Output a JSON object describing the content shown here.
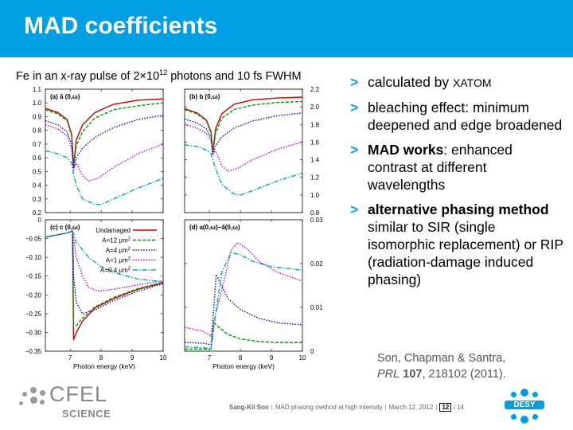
{
  "slide": {
    "title": "MAD coefficients",
    "figure_title_pre": "Fe in an x-ray pulse of 2×10",
    "figure_title_sup": "12",
    "figure_title_post": " photons and 10 fs FWHM"
  },
  "bullets": {
    "b1_pre": "calculated by ",
    "b1_sc": "XATOM",
    "b2": "bleaching effect: minimum deepened and edge broadened",
    "b3_bold": "MAD works",
    "b3_rest": ": enhanced contrast at different wavelengths",
    "b4_bold": "alternative phasing method",
    "b4_rest": " similar to SIR (single isomorphic replacement) or RIP (radiation-damage induced phasing)",
    "marker": ">"
  },
  "reference": {
    "authors": "Son, Chapman & Santra,",
    "journal": "PRL",
    "volume": "107",
    "rest": ", 218102 (2011)."
  },
  "footer": {
    "author": "Sang-Kil Son",
    "talk": "MAD phasing method at high intensity",
    "date": "March 12, 2012",
    "page": "12",
    "total": "/ 14"
  },
  "logos": {
    "cfel": "CFEL",
    "cfel_sub": "SCIENCE",
    "desy": "DESY"
  },
  "colors": {
    "title_bar": "#009fe3",
    "accent": "#009fe3"
  },
  "legend": {
    "title": "Undamaged",
    "entries": [
      "A=12 μm",
      "A=4 μm",
      "A=1 μm",
      "A=0.4 μm"
    ],
    "sup": "2"
  },
  "chart_data": [
    {
      "type": "line",
      "panel_label": "(a) ā (0,ω)",
      "xlabel": "",
      "ylabel": "",
      "xlim": [
        6.2,
        10
      ],
      "ylim": [
        0.2,
        1.1
      ],
      "y_ticks": [
        "1.1",
        "1.0",
        "0.9",
        "0.8",
        "0.7",
        "0.6",
        "0.5",
        "0.4",
        "0.3",
        "0.2"
      ],
      "edge_x": 7.11,
      "series": [
        {
          "name": "Undamaged",
          "color": "#cc0000",
          "dash": "solid",
          "x": [
            6.2,
            6.6,
            6.9,
            7.05,
            7.11,
            7.2,
            7.4,
            7.8,
            8.4,
            9.2,
            10
          ],
          "y": [
            0.96,
            0.93,
            0.88,
            0.77,
            0.54,
            0.73,
            0.84,
            0.93,
            0.99,
            1.02,
            1.03
          ]
        },
        {
          "name": "A=12 μm2",
          "color": "#009900",
          "dash": "dashed",
          "x": [
            6.2,
            6.6,
            6.9,
            7.05,
            7.11,
            7.2,
            7.4,
            7.8,
            8.4,
            9.2,
            10
          ],
          "y": [
            0.95,
            0.92,
            0.87,
            0.76,
            0.53,
            0.69,
            0.79,
            0.89,
            0.95,
            0.98,
            1.0
          ]
        },
        {
          "name": "A=4 μm2",
          "color": "#0000cc",
          "dash": "dotted",
          "x": [
            6.2,
            6.6,
            6.9,
            7.05,
            7.11,
            7.2,
            7.4,
            7.8,
            8.4,
            9.2,
            10
          ],
          "y": [
            0.87,
            0.84,
            0.79,
            0.7,
            0.51,
            0.6,
            0.67,
            0.75,
            0.82,
            0.88,
            0.91
          ]
        },
        {
          "name": "A=1 μm2",
          "color": "#cc00cc",
          "dash": "dotted",
          "x": [
            6.2,
            6.6,
            6.9,
            7.05,
            7.11,
            7.2,
            7.4,
            7.6,
            7.9,
            8.4,
            9.2,
            10
          ],
          "y": [
            0.84,
            0.81,
            0.76,
            0.67,
            0.53,
            0.56,
            0.47,
            0.43,
            0.45,
            0.53,
            0.63,
            0.7
          ]
        },
        {
          "name": "A=0.4 μm2",
          "color": "#00aaaa",
          "dash": "dashdot",
          "x": [
            6.2,
            6.6,
            6.9,
            7.05,
            7.11,
            7.2,
            7.4,
            7.8,
            8.0,
            8.4,
            9.2,
            10
          ],
          "y": [
            0.65,
            0.63,
            0.6,
            0.56,
            0.48,
            0.4,
            0.3,
            0.26,
            0.26,
            0.3,
            0.38,
            0.45
          ]
        }
      ]
    },
    {
      "type": "line",
      "panel_label": "(b) b (0,ω)",
      "xlabel": "",
      "ylabel": "",
      "xlim": [
        6.2,
        10
      ],
      "ylim": [
        0.8,
        2.2
      ],
      "y_ticks": [
        "2.2",
        "2.0",
        "1.8",
        "1.6",
        "1.4",
        "1.2",
        "1.0",
        "0.8"
      ],
      "series": [
        {
          "name": "Undamaged",
          "color": "#cc0000",
          "dash": "solid",
          "x": [
            6.2,
            6.6,
            6.9,
            7.05,
            7.11,
            7.2,
            7.4,
            7.8,
            8.4,
            9.2,
            10
          ],
          "y": [
            1.98,
            1.93,
            1.85,
            1.72,
            1.48,
            1.75,
            1.92,
            2.03,
            2.08,
            2.1,
            2.11
          ]
        },
        {
          "name": "A=12 μm2",
          "color": "#009900",
          "dash": "dashed",
          "x": [
            6.2,
            6.6,
            6.9,
            7.05,
            7.11,
            7.2,
            7.4,
            7.8,
            8.4,
            9.2,
            10
          ],
          "y": [
            1.97,
            1.92,
            1.84,
            1.71,
            1.47,
            1.7,
            1.87,
            1.97,
            2.02,
            2.05,
            2.06
          ]
        },
        {
          "name": "A=4 μm2",
          "color": "#0000cc",
          "dash": "dotted",
          "x": [
            6.2,
            6.6,
            6.9,
            7.05,
            7.11,
            7.2,
            7.4,
            7.8,
            8.4,
            9.2,
            10
          ],
          "y": [
            1.86,
            1.82,
            1.75,
            1.65,
            1.45,
            1.56,
            1.66,
            1.76,
            1.84,
            1.9,
            1.93
          ]
        },
        {
          "name": "A=1 μm2",
          "color": "#cc00cc",
          "dash": "dotted",
          "x": [
            6.2,
            6.6,
            6.9,
            7.05,
            7.11,
            7.2,
            7.4,
            7.6,
            7.9,
            8.4,
            9.2,
            10
          ],
          "y": [
            1.8,
            1.76,
            1.7,
            1.62,
            1.47,
            1.5,
            1.33,
            1.27,
            1.3,
            1.4,
            1.52,
            1.6
          ]
        },
        {
          "name": "A=0.4 μm2",
          "color": "#00aaaa",
          "dash": "dashdot",
          "x": [
            6.2,
            6.6,
            6.9,
            7.05,
            7.11,
            7.2,
            7.4,
            7.8,
            8.0,
            8.4,
            9.2,
            10
          ],
          "y": [
            1.57,
            1.55,
            1.51,
            1.47,
            1.4,
            1.3,
            1.12,
            1.01,
            1.0,
            1.05,
            1.16,
            1.25
          ]
        }
      ]
    },
    {
      "type": "line",
      "panel_label": "(c) c (0,ω)",
      "xlabel": "Photon energy (keV)",
      "ylabel": "",
      "xlim": [
        6.2,
        10
      ],
      "ylim": [
        -0.35,
        0
      ],
      "x_ticks": [
        "7",
        "8",
        "9",
        "10"
      ],
      "y_ticks": [
        "0",
        "−0.05",
        "−0.10",
        "−0.15",
        "−0.20",
        "−0.25",
        "−0.30",
        "−0.35"
      ],
      "series": [
        {
          "name": "Undamaged",
          "color": "#cc0000",
          "dash": "solid",
          "x": [
            6.2,
            6.6,
            6.9,
            7.08,
            7.11,
            7.2,
            7.4,
            7.8,
            8.4,
            9.2,
            10
          ],
          "y": [
            -0.046,
            -0.04,
            -0.035,
            -0.03,
            -0.32,
            -0.3,
            -0.27,
            -0.235,
            -0.21,
            -0.185,
            -0.168
          ]
        },
        {
          "name": "A=12 μm2",
          "color": "#009900",
          "dash": "dashed",
          "x": [
            6.2,
            6.6,
            6.9,
            7.08,
            7.11,
            7.2,
            7.4,
            7.8,
            8.4,
            9.2,
            10
          ],
          "y": [
            -0.046,
            -0.04,
            -0.035,
            -0.03,
            -0.28,
            -0.282,
            -0.262,
            -0.232,
            -0.207,
            -0.183,
            -0.166
          ]
        },
        {
          "name": "A=4 μm2",
          "color": "#0000cc",
          "dash": "dotted",
          "x": [
            6.2,
            6.6,
            6.9,
            7.08,
            7.11,
            7.2,
            7.4,
            7.8,
            8.4,
            9.2,
            10
          ],
          "y": [
            -0.046,
            -0.04,
            -0.035,
            -0.03,
            -0.15,
            -0.22,
            -0.25,
            -0.24,
            -0.215,
            -0.19,
            -0.17
          ]
        },
        {
          "name": "A=1 μm2",
          "color": "#cc00cc",
          "dash": "dotted",
          "x": [
            6.2,
            6.6,
            6.9,
            7.08,
            7.2,
            7.4,
            7.6,
            7.9,
            8.4,
            9.2,
            10
          ],
          "y": [
            -0.046,
            -0.04,
            -0.035,
            -0.03,
            -0.1,
            -0.15,
            -0.18,
            -0.19,
            -0.185,
            -0.173,
            -0.162
          ]
        },
        {
          "name": "A=0.4 μm2",
          "color": "#00aaaa",
          "dash": "dashdot",
          "x": [
            6.2,
            6.6,
            6.9,
            7.08,
            7.2,
            7.6,
            8.0,
            8.6,
            9.2,
            10
          ],
          "y": [
            -0.046,
            -0.04,
            -0.035,
            -0.03,
            -0.06,
            -0.1,
            -0.125,
            -0.145,
            -0.158,
            -0.165
          ]
        }
      ]
    },
    {
      "type": "line",
      "panel_label": "(d) a(0,ω)−ā(0,ω)",
      "xlabel": "Photon energy (keV)",
      "ylabel": "",
      "xlim": [
        6.2,
        10
      ],
      "ylim": [
        0,
        0.03
      ],
      "x_ticks": [
        "7",
        "8",
        "9",
        "10"
      ],
      "y_ticks": [
        "0.03",
        "0.02",
        "0.01",
        "0"
      ],
      "series": [
        {
          "name": "A=12 μm2",
          "color": "#009900",
          "dash": "dashed",
          "x": [
            6.2,
            6.8,
            7.05,
            7.1,
            7.15,
            7.3,
            7.6,
            8.0,
            8.6,
            9.2,
            10
          ],
          "y": [
            0.0005,
            0.0005,
            0.0005,
            0.003,
            0.0065,
            0.0055,
            0.0038,
            0.0028,
            0.0022,
            0.002,
            0.002
          ]
        },
        {
          "name": "A=4 μm2",
          "color": "#0000cc",
          "dash": "dotted",
          "x": [
            6.2,
            6.8,
            7.05,
            7.12,
            7.22,
            7.35,
            7.6,
            8.0,
            8.6,
            9.2,
            10
          ],
          "y": [
            0.002,
            0.0018,
            0.0015,
            0.008,
            0.0175,
            0.0155,
            0.012,
            0.0095,
            0.0075,
            0.0065,
            0.006
          ]
        },
        {
          "name": "A=1 μm2",
          "color": "#cc00cc",
          "dash": "dotted",
          "x": [
            6.2,
            6.8,
            7.05,
            7.15,
            7.4,
            7.7,
            7.9,
            8.2,
            8.6,
            9.2,
            10
          ],
          "y": [
            0.0055,
            0.0045,
            0.0035,
            0.007,
            0.014,
            0.023,
            0.0248,
            0.0235,
            0.0205,
            0.018,
            0.016
          ]
        },
        {
          "name": "A=0.4 μm2",
          "color": "#00aaaa",
          "dash": "dashdot",
          "x": [
            6.2,
            6.8,
            7.05,
            7.15,
            7.4,
            7.7,
            8.0,
            8.4,
            9.0,
            10
          ],
          "y": [
            0.001,
            0.0008,
            0.0005,
            0.006,
            0.018,
            0.0225,
            0.022,
            0.0205,
            0.0193,
            0.0185
          ]
        }
      ]
    }
  ]
}
